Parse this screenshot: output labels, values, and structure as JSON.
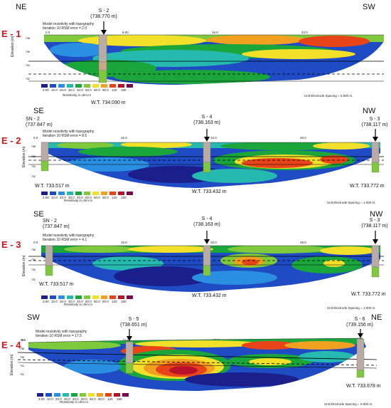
{
  "legend": {
    "label": "Resistivity in ohm.m",
    "ticks": [
      "3.00",
      "10.0",
      "20.0",
      "30.0",
      "40.0",
      "50.0",
      "60.0",
      "90.0",
      "120",
      "180"
    ],
    "colors": [
      "#1b1f8c",
      "#1f4bc4",
      "#2a8fe0",
      "#26b9b0",
      "#1aa63b",
      "#7fc93c",
      "#f2e02b",
      "#f2a01f",
      "#e8441a",
      "#b8112a",
      "#7a0b4a",
      "#5a0a3a"
    ]
  },
  "model_line1": "Model resistivity with topography",
  "panels": [
    {
      "id": "E - 1",
      "left_dir": "NE",
      "right_dir": "SW",
      "iteration": "Iteration 10 RSM error = 2.0",
      "ylabel": "Elevation (m)",
      "unit_spacing": "Unit Electrode Spacing = 0.500 m.",
      "topticks": [
        "0.0",
        "8.00",
        "16.0",
        "24.0"
      ],
      "wells": [
        {
          "name": "S - 2",
          "elev": "(738.770 m)"
        }
      ],
      "water_tables": [
        "W.T. 734.090 m"
      ]
    },
    {
      "id": "E - 2",
      "left_dir": "SE",
      "right_dir": "NW",
      "iteration": "Iteration 10 RSM error = 8.6",
      "ylabel": "Elevation (m)",
      "unit_spacing": "Unit Electrode Spacing = 1.000 m.",
      "topticks": [
        "0.0",
        "16.0",
        "32.0",
        "48.0"
      ],
      "wells": [
        {
          "name": "SN - 2",
          "elev": "(737.847 m)"
        },
        {
          "name": "S - 4",
          "elev": "(738.163 m)"
        },
        {
          "name": "S - 3",
          "elev": "(738.117 m)"
        }
      ],
      "water_tables": [
        "W.T. 733.517 m",
        "W.T. 733.432 m",
        "W.T. 733.772 m"
      ]
    },
    {
      "id": "E - 3",
      "left_dir": "SE",
      "right_dir": "NW",
      "iteration": "Iteration 10 RSM error = 4.1",
      "ylabel": "Elevation (m)",
      "unit_spacing": "Unit Electrode Spacing = 1.000 m.",
      "topticks": [
        "0.0",
        "16.0",
        "32.0",
        "48.0"
      ],
      "wells": [
        {
          "name": "SN - 2",
          "elev": "(737.847 m)"
        },
        {
          "name": "S - 4",
          "elev": "(738.163 m)"
        },
        {
          "name": "S - 3",
          "elev": "(738.117 m)"
        }
      ],
      "water_tables": [
        "W.T. 733.517 m",
        "W.T. 733.432 m",
        "W.T. 733.772 m"
      ]
    },
    {
      "id": "E - 4",
      "left_dir": "SW",
      "right_dir": "NE",
      "iteration": "Iteration 10 RSM error = 17.5",
      "ylabel": "Elevation (m)",
      "unit_spacing": "Unit Electrode Spacing = 0.900 m.",
      "topticks": [
        "0.0",
        "14.4",
        "28.8",
        "43.2"
      ],
      "wells": [
        {
          "name": "S - 5",
          "elev": "(738.651 m)"
        },
        {
          "name": "S - 6",
          "elev": "(739.156 m)"
        }
      ],
      "water_tables": [
        "W.T. 733.678 m"
      ]
    }
  ]
}
